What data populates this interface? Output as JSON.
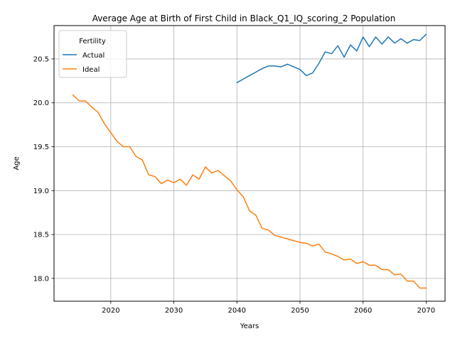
{
  "chart_data": {
    "type": "line",
    "title": "Average Age at Birth of First Child in Black_Q1_IQ_scoring_2 Population",
    "xlabel": "Years",
    "ylabel": "Age",
    "xlim": [
      2011,
      2073
    ],
    "ylim": [
      17.74,
      20.88
    ],
    "xticks": [
      2020,
      2030,
      2040,
      2050,
      2060,
      2070
    ],
    "yticks": [
      18.0,
      18.5,
      19.0,
      19.5,
      20.0,
      20.5
    ],
    "ytick_labels": [
      "18.0",
      "18.5",
      "19.0",
      "19.5",
      "20.0",
      "20.5"
    ],
    "grid": true,
    "legend": {
      "title": "Fertility",
      "position": "upper-left"
    },
    "series": [
      {
        "name": "Actual",
        "color": "#1f77b4",
        "x": [
          2040,
          2041,
          2042,
          2043,
          2044,
          2045,
          2046,
          2047,
          2048,
          2049,
          2050,
          2051,
          2052,
          2053,
          2054,
          2055,
          2056,
          2057,
          2058,
          2059,
          2060,
          2061,
          2062,
          2063,
          2064,
          2065,
          2066,
          2067,
          2068,
          2069,
          2070
        ],
        "y": [
          20.23,
          20.27,
          20.31,
          20.35,
          20.39,
          20.42,
          20.42,
          20.41,
          20.44,
          20.41,
          20.38,
          20.31,
          20.34,
          20.45,
          20.58,
          20.56,
          20.65,
          20.52,
          20.66,
          20.59,
          20.75,
          20.64,
          20.75,
          20.67,
          20.75,
          20.68,
          20.73,
          20.68,
          20.72,
          20.71,
          20.78
        ]
      },
      {
        "name": "Ideal",
        "color": "#ff7f0e",
        "x": [
          2014,
          2015,
          2016,
          2017,
          2018,
          2019,
          2020,
          2021,
          2022,
          2023,
          2024,
          2025,
          2026,
          2027,
          2028,
          2029,
          2030,
          2031,
          2032,
          2033,
          2034,
          2035,
          2036,
          2037,
          2038,
          2039,
          2040,
          2041,
          2042,
          2043,
          2044,
          2045,
          2046,
          2047,
          2048,
          2049,
          2050,
          2051,
          2052,
          2053,
          2054,
          2055,
          2056,
          2057,
          2058,
          2059,
          2060,
          2061,
          2062,
          2063,
          2064,
          2065,
          2066,
          2067,
          2068,
          2069,
          2070
        ],
        "y": [
          20.09,
          20.02,
          20.02,
          19.95,
          19.89,
          19.76,
          19.66,
          19.56,
          19.5,
          19.5,
          19.39,
          19.35,
          19.18,
          19.16,
          19.08,
          19.12,
          19.09,
          19.13,
          19.06,
          19.18,
          19.13,
          19.27,
          19.2,
          19.23,
          19.17,
          19.11,
          19.01,
          18.93,
          18.77,
          18.72,
          18.57,
          18.55,
          18.49,
          18.47,
          18.45,
          18.43,
          18.41,
          18.4,
          18.37,
          18.39,
          18.3,
          18.28,
          18.25,
          18.21,
          18.22,
          18.17,
          18.19,
          18.15,
          18.15,
          18.1,
          18.1,
          18.04,
          18.05,
          17.97,
          17.97,
          17.89,
          17.89
        ]
      }
    ]
  }
}
